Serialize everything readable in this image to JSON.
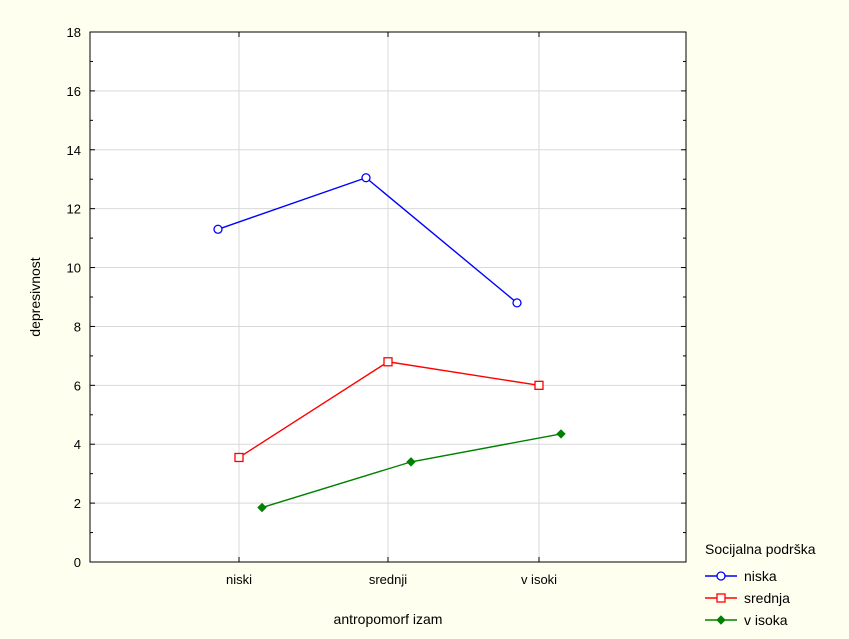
{
  "chart_data": {
    "type": "line",
    "title": "",
    "xlabel": "antropomorf izam",
    "ylabel": "depresivnost",
    "categories": [
      "niski",
      "srednji",
      "v isoki"
    ],
    "ylim": [
      0,
      18
    ],
    "yticks": [
      0,
      2,
      4,
      6,
      8,
      10,
      12,
      14,
      16,
      18
    ],
    "grid": true,
    "legend": {
      "title": "Socijalna podrška",
      "placement": "bottom-right outside"
    },
    "series": [
      {
        "name": "niska",
        "values": [
          11.3,
          13.05,
          8.8
        ],
        "color": "#0000ff",
        "marker": "circle"
      },
      {
        "name": "srednja",
        "values": [
          3.55,
          6.8,
          6.0
        ],
        "color": "#ff0000",
        "marker": "square"
      },
      {
        "name": "v isoka",
        "values": [
          1.85,
          3.4,
          4.35
        ],
        "color": "#008000",
        "marker": "diamond"
      }
    ]
  }
}
